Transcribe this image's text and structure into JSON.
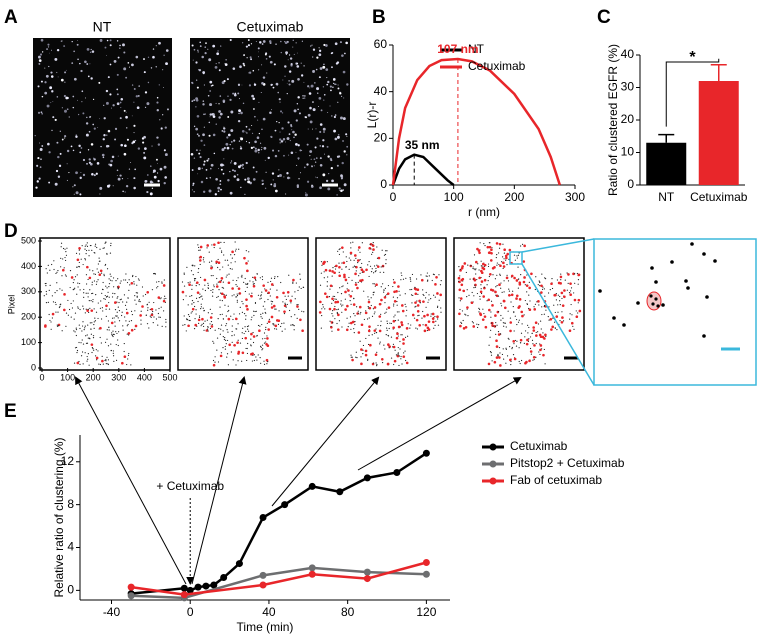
{
  "panels": {
    "labels": [
      "A",
      "B",
      "C",
      "D",
      "E"
    ],
    "image_titles": [
      "NT",
      "Cetuximab"
    ]
  },
  "chart_data": [
    {
      "type": "line",
      "x_label": "r (nm)",
      "y_label": "L(r)-r",
      "xlim": [
        0,
        300
      ],
      "xticks": [
        0,
        100,
        200,
        300
      ],
      "ylim": [
        0,
        60
      ],
      "yticks": [
        0,
        20,
        40,
        60
      ],
      "legend": "top-right",
      "series": [
        {
          "name": "NT",
          "color": "#000000",
          "x": [
            0,
            10,
            20,
            35,
            50,
            70,
            90,
            100
          ],
          "values": [
            0,
            7,
            11,
            13,
            12,
            7,
            2,
            0
          ]
        },
        {
          "name": "Cetuximab",
          "color": "#e8262a",
          "x": [
            0,
            10,
            20,
            40,
            60,
            80,
            107,
            130,
            160,
            200,
            240,
            260,
            275
          ],
          "values": [
            0,
            20,
            33,
            45,
            51,
            53.5,
            54,
            53,
            49,
            39,
            24,
            12,
            0
          ]
        }
      ],
      "annotations": [
        {
          "label": "35 nm",
          "x": 35,
          "y": 13,
          "color": "#000000"
        },
        {
          "label": "107 nm",
          "x": 107,
          "y": 54,
          "color": "#e8262a"
        }
      ]
    },
    {
      "type": "bar",
      "y_label": "Ratio of clustered EGFR (%)",
      "categories": [
        "NT",
        "Cetuximab"
      ],
      "values": [
        13,
        32
      ],
      "errors": [
        2.5,
        5
      ],
      "colors": [
        "#000000",
        "#e8262a"
      ],
      "ylim": [
        0,
        40
      ],
      "yticks": [
        0,
        10,
        20,
        30,
        40
      ],
      "annotations": [
        {
          "label": "*"
        }
      ]
    },
    {
      "type": "scatter",
      "y_label": "Pixel",
      "xlim": [
        0,
        500
      ],
      "xticks": [
        0,
        100,
        200,
        300,
        400,
        500
      ],
      "ylim": [
        0,
        500
      ],
      "yticks": [
        0,
        100,
        200,
        300,
        400,
        500
      ]
    },
    {
      "type": "line",
      "x_label": "Time (min)",
      "y_label": "Relative ratio of clustering (%)",
      "xlim": [
        -56,
        132
      ],
      "xticks": [
        -40,
        0,
        40,
        80,
        120
      ],
      "ylim": [
        -0.9,
        14.5
      ],
      "yticks": [
        0,
        4,
        8,
        12
      ],
      "legend": "right",
      "markers": true,
      "series": [
        {
          "name": "Cetuximab",
          "color": "#000000",
          "x": [
            -30,
            -3,
            0,
            4,
            8,
            12,
            17,
            25,
            37,
            48,
            62,
            76,
            90,
            105,
            120
          ],
          "values": [
            -0.3,
            0.2,
            0,
            0.3,
            0.4,
            0.5,
            1.2,
            2.5,
            6.8,
            8.0,
            9.7,
            9.2,
            10.5,
            11.0,
            12.8
          ]
        },
        {
          "name": "Pitstop2 + Cetuximab",
          "color": "#6d6e70",
          "x": [
            -30,
            -3,
            37,
            62,
            90,
            120
          ],
          "values": [
            -0.5,
            -0.7,
            1.4,
            2.1,
            1.7,
            1.5
          ]
        },
        {
          "name": "Fab of cetuximab",
          "color": "#e8262a",
          "x": [
            -30,
            -3,
            37,
            62,
            90,
            120
          ],
          "values": [
            0.3,
            -0.4,
            0.5,
            1.5,
            1.1,
            2.6
          ]
        }
      ],
      "annotations": [
        {
          "label": "+ Cetuximab",
          "x": 0
        }
      ]
    }
  ]
}
